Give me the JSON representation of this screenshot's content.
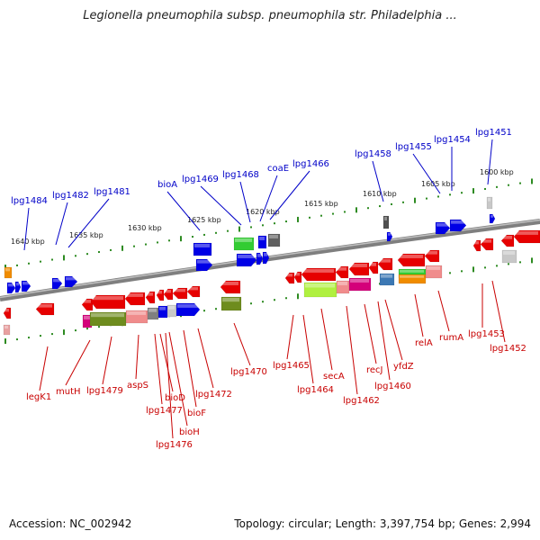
{
  "title": "Legionella pneumophila subsp. pneumophila str. Philadelphia ...",
  "footer": {
    "accession": "Accession: NC_002942",
    "summary": "Topology: circular; Length: 3,397,754 bp; Genes: 2,994"
  },
  "colors": {
    "backbone": "#7f7f7f",
    "tick": "#2e8b22",
    "top_label": "#0000c8",
    "bottom_label": "#c80000"
  },
  "scale_labels": [
    "1640 kbp",
    "1635 kbp",
    "1630 kbp",
    "1625 kbp",
    "1620 kbp",
    "1615 kbp",
    "1610 kbp",
    "1605 kbp",
    "1600 kbp"
  ],
  "top_gene_labels": [
    "lpg1484",
    "lpg1482",
    "lpg1481",
    "bioA",
    "lpg1469",
    "lpg1468",
    "coaE",
    "lpg1466",
    "lpg1458",
    "lpg1455",
    "lpg1454",
    "lpg1451"
  ],
  "bottom_gene_labels": [
    "legK1",
    "mutH",
    "lpg1479",
    "aspS",
    "lpg1477",
    "bioD",
    "lpg1476",
    "bioH",
    "bioF",
    "lpg1472",
    "lpg1470",
    "lpg1465",
    "lpg1464",
    "secA",
    "lpg1462",
    "recJ",
    "lpg1460",
    "yfdZ",
    "relA",
    "rumA",
    "lpg1453",
    "lpg1452"
  ]
}
